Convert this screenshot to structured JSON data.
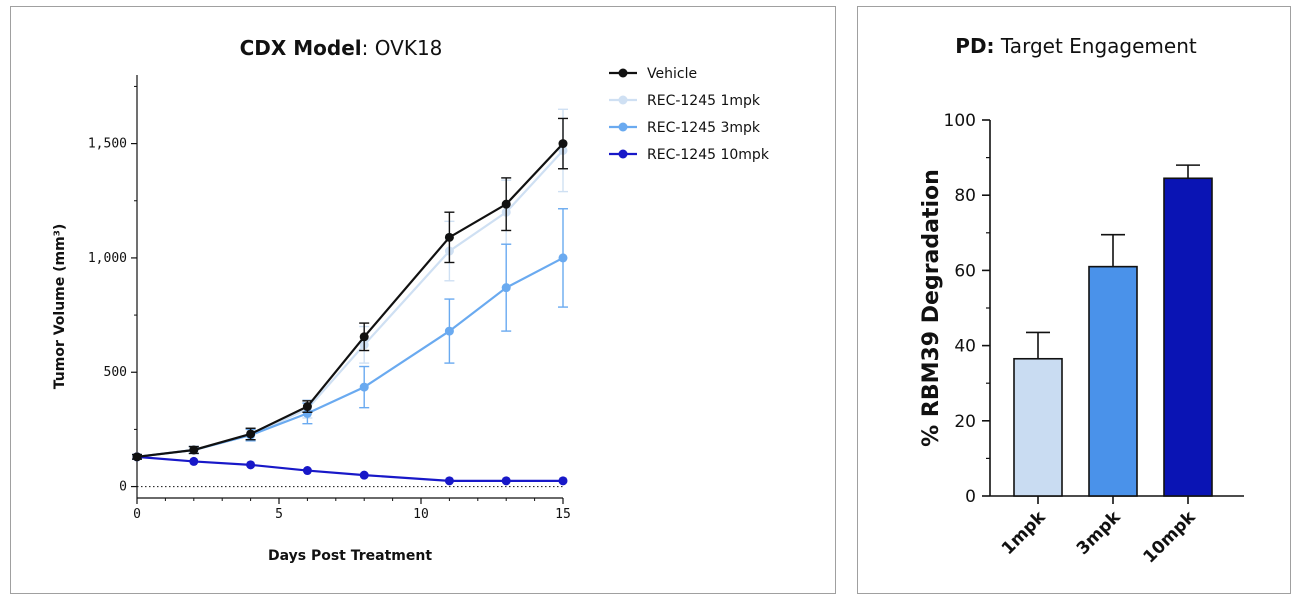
{
  "chart_data": [
    {
      "type": "line",
      "title_bold": "CDX Model",
      "title_rest": ": OVK18",
      "xlabel": "Days Post Treatment",
      "ylabel": "Tumor Volume (mm³)",
      "xlim": [
        0,
        15
      ],
      "ylim": [
        -50,
        1800
      ],
      "x_ticks": [
        0,
        5,
        10,
        15
      ],
      "x_tick_labels": [
        "0",
        "5",
        "10",
        "15"
      ],
      "y_ticks": [
        0,
        500,
        1000,
        1500
      ],
      "y_tick_labels": [
        "0",
        "500",
        "1,000",
        "1,500"
      ],
      "reference_line": 0,
      "legend_position": "top-right",
      "x": [
        0,
        2,
        4,
        6,
        8,
        11,
        13,
        15
      ],
      "series": [
        {
          "name": "Vehicle",
          "color": "#111111",
          "x": [
            0,
            2,
            4,
            6,
            8,
            11,
            13,
            15
          ],
          "values": [
            130,
            160,
            230,
            350,
            655,
            1090,
            1235,
            1500
          ],
          "errors": [
            10,
            15,
            25,
            25,
            60,
            110,
            115,
            110
          ]
        },
        {
          "name": "REC-1245 1mpk",
          "color": "#cfe0f3",
          "x": [
            0,
            2,
            4,
            6,
            8,
            11,
            13,
            15
          ],
          "values": [
            130,
            160,
            225,
            340,
            620,
            1030,
            1200,
            1470
          ],
          "errors": [
            10,
            15,
            25,
            40,
            80,
            130,
            140,
            180
          ]
        },
        {
          "name": "REC-1245 3mpk",
          "color": "#6aaaf0",
          "x": [
            0,
            2,
            4,
            6,
            8,
            11,
            13,
            15
          ],
          "values": [
            130,
            160,
            225,
            320,
            435,
            680,
            870,
            1000
          ],
          "errors": [
            10,
            15,
            25,
            45,
            90,
            140,
            190,
            215
          ]
        },
        {
          "name": "REC-1245 10mpk",
          "color": "#1818c8",
          "x": [
            0,
            2,
            4,
            6,
            8,
            11,
            13,
            15
          ],
          "values": [
            130,
            110,
            95,
            70,
            50,
            25,
            25,
            25
          ],
          "errors": [
            0,
            0,
            0,
            0,
            0,
            0,
            0,
            0
          ]
        }
      ]
    },
    {
      "type": "bar",
      "title_bold": "PD:",
      "title_rest": " Target Engagement",
      "xlabel": "",
      "ylabel": "% RBM39 Degradation",
      "ylim": [
        0,
        100
      ],
      "y_ticks": [
        0,
        20,
        40,
        60,
        80,
        100
      ],
      "y_tick_labels": [
        "0",
        "20",
        "40",
        "60",
        "80",
        "100"
      ],
      "categories": [
        "1mpk",
        "3mpk",
        "10mpk"
      ],
      "values": [
        36.5,
        61,
        84.5
      ],
      "errors": [
        7,
        8.5,
        3.5
      ],
      "colors": [
        "#c9dcf2",
        "#4a92ea",
        "#0a14b4"
      ]
    }
  ]
}
